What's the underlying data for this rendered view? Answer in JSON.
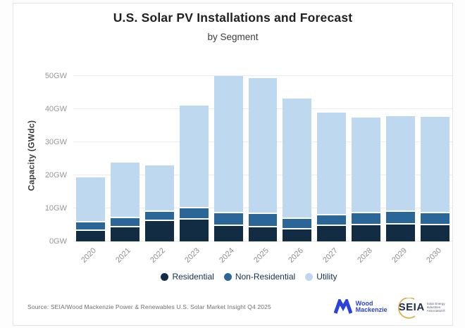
{
  "title": "U.S. Solar PV Installations and Forecast",
  "subtitle": "by Segment",
  "chart_data": {
    "type": "bar",
    "stacked": true,
    "title": "U.S. Solar PV Installations and Forecast",
    "subtitle": "by Segment",
    "xlabel": "",
    "ylabel": "Capacity (GWdc)",
    "ylim": [
      0,
      52
    ],
    "grid": true,
    "legend_position": "bottom",
    "ytick_values": [
      0,
      10,
      20,
      30,
      40,
      50
    ],
    "ytick_labels": [
      "0GW",
      "10GW",
      "20GW",
      "30GW",
      "40GW",
      "50GW"
    ],
    "categories": [
      "2020",
      "2021",
      "2022",
      "2023",
      "2024",
      "2025",
      "2026",
      "2027",
      "2028",
      "2029",
      "2030"
    ],
    "series": [
      {
        "name": "Residential",
        "color": "#122c44",
        "values": [
          3.3,
          4.2,
          6.1,
          6.7,
          4.6,
          4.3,
          3.7,
          4.6,
          5.0,
          5.2,
          5.0
        ]
      },
      {
        "name": "Non-Residential",
        "color": "#2b6699",
        "values": [
          2.5,
          2.8,
          2.9,
          3.4,
          4.0,
          3.9,
          3.2,
          3.2,
          3.5,
          3.7,
          3.6
        ]
      },
      {
        "name": "Utility",
        "color": "#bed9ef",
        "values": [
          13.6,
          16.8,
          13.9,
          30.9,
          41.3,
          41.1,
          36.2,
          31.1,
          28.9,
          28.9,
          29.0
        ]
      }
    ],
    "totals": [
      19.4,
      23.8,
      22.9,
      41.0,
      49.9,
      49.3,
      43.1,
      38.9,
      37.4,
      37.8,
      37.6
    ]
  },
  "footer": {
    "source": "Source: SEIA/Wood Mackenzie Power & Renewables U.S. Solar Market Insight Q4 2025",
    "logos": {
      "wood_mackenzie": {
        "line1": "Wood",
        "line2": "Mackenzie",
        "color": "#2b42dd"
      },
      "seia": {
        "name": "SEIA",
        "tagline": [
          "Solar Energy",
          "Industries",
          "Association®"
        ],
        "navy": "#1c2b4a",
        "gold": "#d9a93f"
      }
    }
  }
}
